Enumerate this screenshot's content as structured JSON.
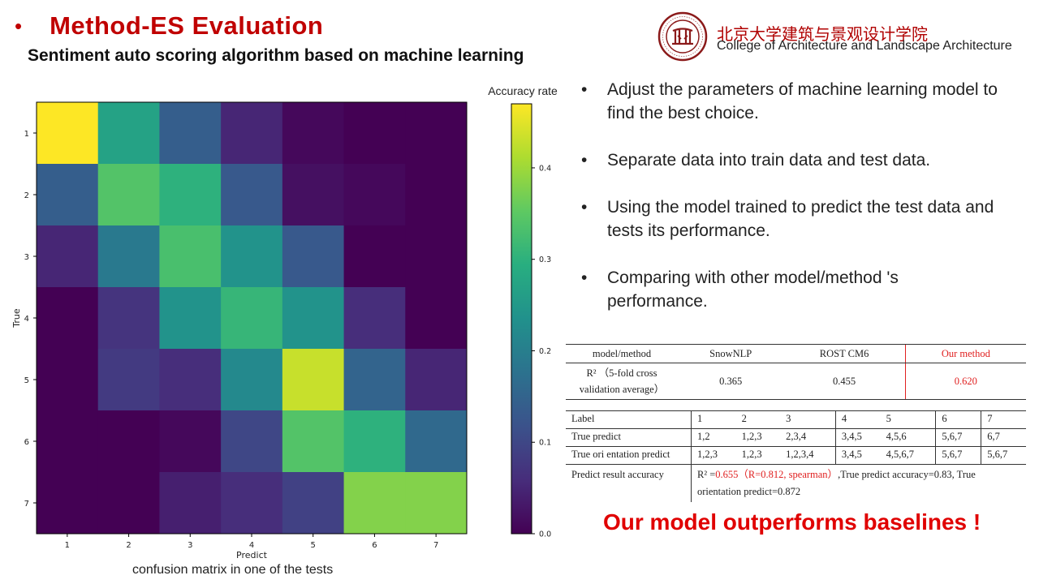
{
  "slide": {
    "bullet": "•",
    "title": "Method-ES Evaluation",
    "subtitle": "Sentiment auto scoring algorithm based on machine learning"
  },
  "university": {
    "name_cn": "北京大学建筑与景观设计学院",
    "name_en": "College of Architecture and Landscape Architecture",
    "logo_color": "#8b1a1a"
  },
  "chart_data": {
    "type": "heatmap",
    "title": "",
    "xlabel": "Predict",
    "ylabel": "True",
    "colorbar_label": "Accuracy rate",
    "colormap": "viridis",
    "x_categories": [
      "1",
      "2",
      "3",
      "4",
      "5",
      "6",
      "7"
    ],
    "y_categories": [
      "1",
      "2",
      "3",
      "4",
      "5",
      "6",
      "7"
    ],
    "vmin": 0.0,
    "vmax": 0.47,
    "colorbar_ticks": [
      0.0,
      0.1,
      0.2,
      0.3,
      0.4
    ],
    "values": [
      [
        0.47,
        0.27,
        0.14,
        0.05,
        0.01,
        0.0,
        0.0
      ],
      [
        0.14,
        0.34,
        0.3,
        0.13,
        0.02,
        0.01,
        0.0
      ],
      [
        0.05,
        0.19,
        0.33,
        0.24,
        0.13,
        0.0,
        0.0
      ],
      [
        0.0,
        0.07,
        0.24,
        0.31,
        0.24,
        0.06,
        0.0
      ],
      [
        0.0,
        0.08,
        0.06,
        0.22,
        0.43,
        0.15,
        0.05
      ],
      [
        0.0,
        0.0,
        0.01,
        0.1,
        0.34,
        0.3,
        0.16
      ],
      [
        0.0,
        0.0,
        0.04,
        0.06,
        0.09,
        0.38,
        0.38
      ]
    ]
  },
  "caption": "confusion matrix in one of the tests",
  "bullets": [
    "Adjust the parameters of machine learning model to find the best choice.",
    "Separate data into train data and test data.",
    "Using the model trained to predict the test data and tests its performance.",
    "Comparing with other model/method 's performance."
  ],
  "bullet_char": "•",
  "comparison_table": {
    "header": [
      "model/method",
      "SnowNLP",
      "ROST CM6",
      "Our method"
    ],
    "row_label": "R² （5-fold cross validation average）",
    "row_values": [
      "0.365",
      "0.455",
      "0.620"
    ]
  },
  "label_table": {
    "label_row": [
      "Label",
      "1",
      "2",
      "3",
      "4",
      "5",
      "6",
      "7"
    ],
    "true_predict_row": [
      "True predict",
      "1,2",
      "1,2,3",
      "2,3,4",
      "3,4,5",
      "4,5,6",
      "5,6,7",
      "6,7"
    ],
    "orientation_row": [
      "True ori entation predict",
      "1,2,3",
      "1,2,3",
      "1,2,3,4",
      "3,4,5",
      "4,5,6,7",
      "5,6,7",
      "5,6,7"
    ],
    "accuracy_label": "Predict result accuracy",
    "accuracy_prefix": "R² =",
    "accuracy_red": "0.655（R=0.812, spearman）",
    "accuracy_suffix": ",True predict accuracy=0.83, True orientation predict=0.872"
  },
  "conclusion": "Our model outperforms baselines !",
  "colors": {
    "accent": "#c00000",
    "highlight": "#e02020"
  }
}
